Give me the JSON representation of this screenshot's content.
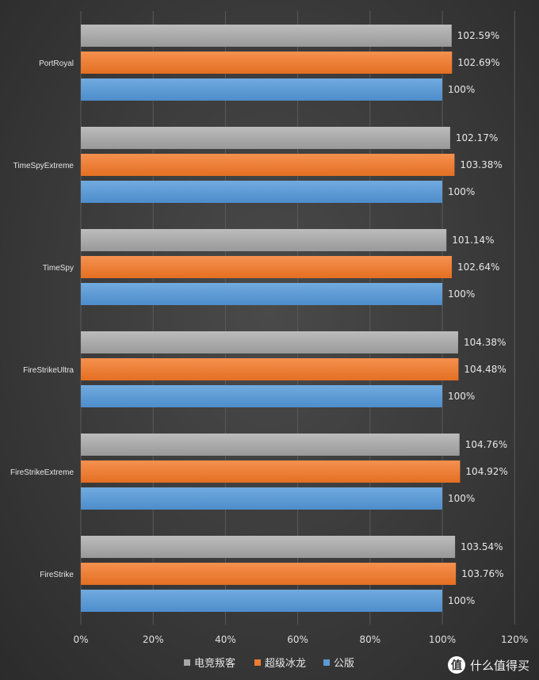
{
  "chart_data": {
    "type": "bar",
    "orientation": "horizontal",
    "categories": [
      "PortRoyal",
      "TimeSpyExtreme",
      "TimeSpy",
      "FireStrikeUltra",
      "FireStrikeExtreme",
      "FireStrike"
    ],
    "series": [
      {
        "name": "电竞叛客",
        "color": "#a6a6a6",
        "values": [
          102.59,
          102.17,
          101.14,
          104.38,
          104.76,
          103.54
        ],
        "labels": [
          "102.59%",
          "102.17%",
          "101.14%",
          "104.38%",
          "104.76%",
          "103.54%"
        ]
      },
      {
        "name": "超级冰龙",
        "color": "#ed7d31",
        "values": [
          102.69,
          103.38,
          102.64,
          104.48,
          104.92,
          103.76
        ],
        "labels": [
          "102.69%",
          "103.38%",
          "102.64%",
          "104.48%",
          "104.92%",
          "103.76%"
        ]
      },
      {
        "name": "公版",
        "color": "#5b9bd5",
        "values": [
          100,
          100,
          100,
          100,
          100,
          100
        ],
        "labels": [
          "100%",
          "100%",
          "100%",
          "100%",
          "100%",
          "100%"
        ]
      }
    ],
    "xlim": [
      0,
      120
    ],
    "xticks": [
      0,
      20,
      40,
      60,
      80,
      100,
      120
    ],
    "xtick_labels": [
      "0%",
      "20%",
      "40%",
      "60%",
      "80%",
      "100%",
      "120%"
    ],
    "grid": true,
    "legend_position": "bottom"
  },
  "watermark": {
    "badge": "值",
    "text": "什么值得买"
  }
}
